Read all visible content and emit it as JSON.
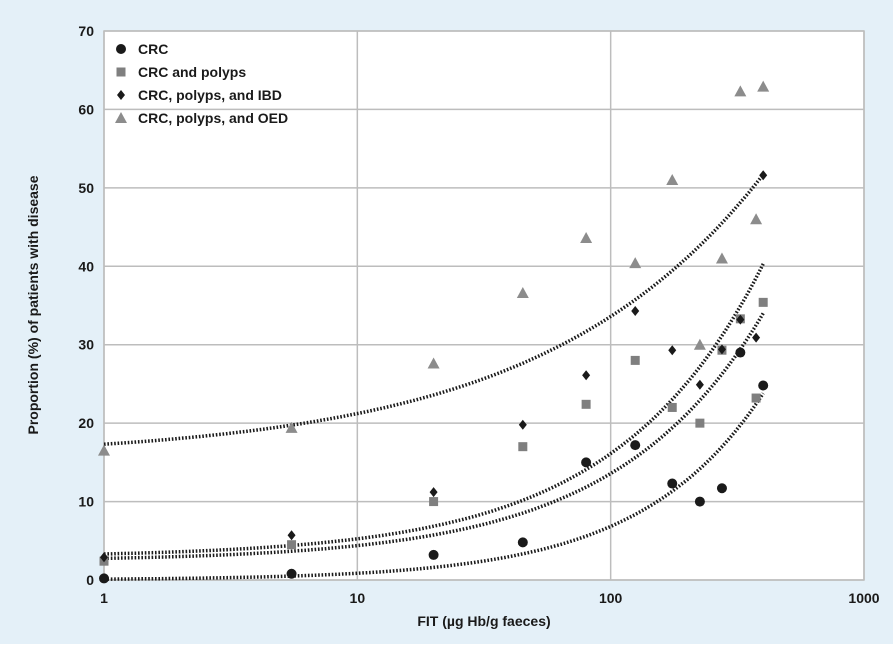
{
  "chart_data": {
    "type": "scatter",
    "title": "",
    "xlabel": "FIT (µg Hb/g faeces)",
    "ylabel": "Proportion (%) of patients with disease",
    "xscale": "log",
    "xlim": [
      1,
      1000
    ],
    "ylim": [
      0,
      70
    ],
    "xticks": [
      1,
      10,
      100,
      1000
    ],
    "xtick_labels": [
      "1",
      "10",
      "100",
      "1000"
    ],
    "yticks": [
      0,
      10,
      20,
      30,
      40,
      50,
      60,
      70
    ],
    "ytick_labels": [
      "0",
      "10",
      "20",
      "30",
      "40",
      "50",
      "60",
      "70"
    ],
    "grid": true,
    "legend_position": "top-left",
    "trendline_style": "dotted exponential",
    "series": [
      {
        "name": "CRC",
        "marker": "circle",
        "color": "#1a1a1a",
        "x": [
          1,
          5.5,
          20,
          45,
          80,
          125,
          175,
          225,
          275,
          325,
          400
        ],
        "y": [
          0.2,
          0.8,
          3.2,
          4.8,
          15,
          17.2,
          12.3,
          10,
          11.7,
          29,
          24.8
        ],
        "trend": {
          "a": 0,
          "b": 23.8,
          "k": 0.9
        }
      },
      {
        "name": "CRC and polyps",
        "marker": "square",
        "color": "#7f7f7f",
        "x": [
          1,
          5.5,
          20,
          45,
          80,
          125,
          175,
          225,
          275,
          325,
          375,
          400
        ],
        "y": [
          2.4,
          4.5,
          10,
          17,
          22.4,
          28,
          22,
          20,
          29.3,
          33.3,
          23.2,
          35.4
        ],
        "trend": {
          "a": 2.4,
          "b": 31.6,
          "k": 0.75
        }
      },
      {
        "name": "CRC, polyps, and IBD",
        "marker": "diamond",
        "color": "#1a1a1a",
        "x": [
          1,
          5.5,
          20,
          45,
          80,
          125,
          175,
          225,
          275,
          325,
          375,
          400
        ],
        "y": [
          2.9,
          5.7,
          11.2,
          19.8,
          26.1,
          34.3,
          29.3,
          24.9,
          29.4,
          33.2,
          30.9,
          51.6
        ],
        "trend": {
          "a": 2.9,
          "b": 37.4,
          "k": 0.75
        }
      },
      {
        "name": "CRC, polyps, and OED",
        "marker": "triangle",
        "color": "#8c8c8c",
        "x": [
          1,
          5.5,
          20,
          45,
          80,
          125,
          175,
          225,
          275,
          325,
          375,
          400
        ],
        "y": [
          16.5,
          19.4,
          27.6,
          36.6,
          43.6,
          40.4,
          51,
          30,
          41,
          62.3,
          46,
          62.9
        ],
        "trend": {
          "a": 15.5,
          "b": 36.2,
          "k": 0.5
        }
      }
    ]
  }
}
